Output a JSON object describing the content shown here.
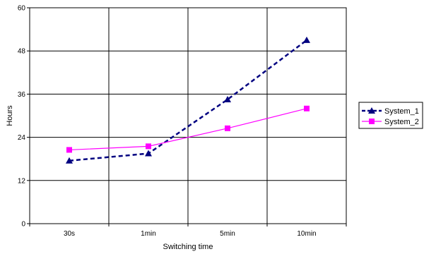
{
  "chart_data": {
    "type": "line",
    "title": "",
    "xlabel": "Switching time",
    "ylabel": "Hours",
    "categories": [
      "30s",
      "1min",
      "5min",
      "10min"
    ],
    "ylim": [
      0,
      60
    ],
    "yticks": [
      0,
      12,
      24,
      36,
      48,
      60
    ],
    "grid": true,
    "legend_position": "right",
    "series": [
      {
        "name": "System_1",
        "values": [
          17.5,
          19.5,
          34.5,
          51
        ],
        "color": "#000080",
        "line_style": "dashed",
        "marker": "triangle"
      },
      {
        "name": "System_2",
        "values": [
          20.5,
          21.5,
          26.5,
          32
        ],
        "color": "#ff00ff",
        "line_style": "solid",
        "marker": "square"
      }
    ]
  }
}
